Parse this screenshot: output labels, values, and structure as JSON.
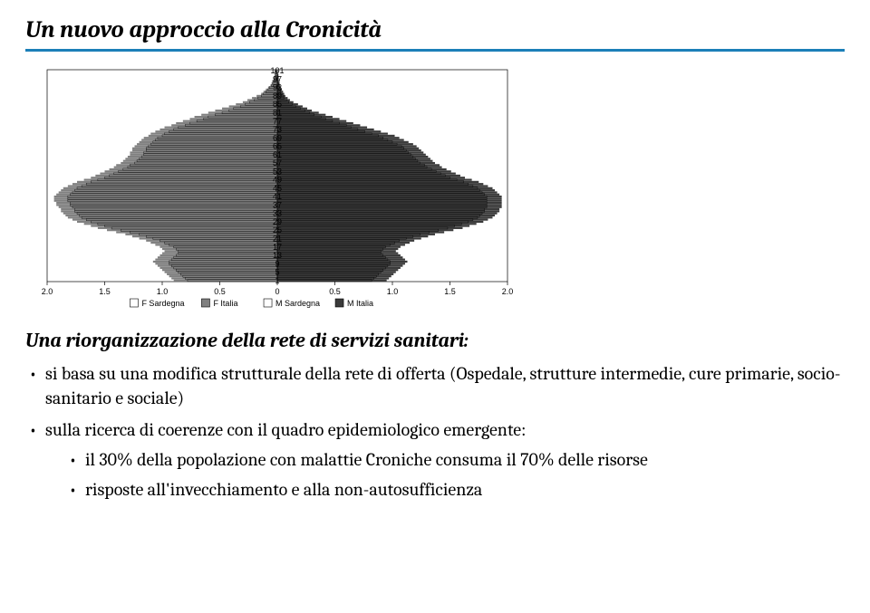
{
  "title": "Un nuovo approccio alla Cronicità",
  "subtitle": "Una riorganizzazione della rete di servizi sanitari:",
  "bullets": {
    "b1": "si basa su una modifica strutturale della rete di offerta (Ospedale, strutture intermedie, cure primarie, socio-sanitario e sociale)",
    "b2": "sulla ricerca di coerenze con il quadro epidemiologico emergente:",
    "sub1": "il 30% della popolazione con malattie Croniche consuma il 70% delle risorse",
    "sub2": "risposte all'invecchiamento e alla non-autosufficienza"
  },
  "chart": {
    "type": "population-pyramid",
    "x_axis": {
      "min": -2.0,
      "max": 2.0,
      "ticks": [
        "2.0",
        "1.5",
        "1.0",
        "0.5",
        "0",
        "0.5",
        "1.0",
        "1.5",
        "2.0"
      ]
    },
    "y_axis": {
      "age_min": 1,
      "age_max": 101,
      "tick_step": 4,
      "top_labels": [
        "101",
        "97"
      ]
    },
    "legend": [
      {
        "label": "F Sardegna",
        "fill": "#ffffff",
        "stroke": "#000000"
      },
      {
        "label": "F Italia",
        "fill": "#808080",
        "stroke": "#808080"
      },
      {
        "label": "M Sardegna",
        "fill": "#ffffff",
        "stroke": "#000000"
      },
      {
        "label": "M Italia",
        "fill": "#3a3a3a",
        "stroke": "#3a3a3a"
      }
    ],
    "colors": {
      "female_italia": "#808080",
      "female_sardegna_fill": "#ffffff",
      "female_sardegna_stroke": "#000000",
      "male_italia": "#3a3a3a",
      "male_sardegna_fill": "#ffffff",
      "male_sardegna_stroke": "#000000",
      "frame": "#000000",
      "background": "#ffffff"
    },
    "bar_height": 2.2,
    "series": {
      "female_italia": [
        0.9,
        0.92,
        0.94,
        0.96,
        0.98,
        1.0,
        1.02,
        1.04,
        1.06,
        1.08,
        1.06,
        1.04,
        1.02,
        1.0,
        0.98,
        1.0,
        1.02,
        1.06,
        1.1,
        1.14,
        1.2,
        1.26,
        1.32,
        1.4,
        1.48,
        1.56,
        1.62,
        1.68,
        1.74,
        1.78,
        1.82,
        1.84,
        1.86,
        1.88,
        1.88,
        1.9,
        1.92,
        1.92,
        1.94,
        1.94,
        1.94,
        1.92,
        1.9,
        1.88,
        1.86,
        1.82,
        1.78,
        1.74,
        1.68,
        1.62,
        1.58,
        1.54,
        1.5,
        1.46,
        1.42,
        1.4,
        1.36,
        1.34,
        1.32,
        1.3,
        1.28,
        1.28,
        1.26,
        1.26,
        1.24,
        1.22,
        1.2,
        1.18,
        1.16,
        1.12,
        1.1,
        1.06,
        1.02,
        0.98,
        0.92,
        0.88,
        0.82,
        0.76,
        0.72,
        0.66,
        0.6,
        0.54,
        0.48,
        0.42,
        0.36,
        0.3,
        0.26,
        0.22,
        0.18,
        0.14,
        0.12,
        0.1,
        0.08,
        0.06,
        0.05,
        0.04,
        0.03,
        0.03,
        0.02,
        0.02,
        0.02
      ],
      "male_italia": [
        0.95,
        0.97,
        0.99,
        1.01,
        1.03,
        1.05,
        1.07,
        1.09,
        1.11,
        1.13,
        1.11,
        1.09,
        1.07,
        1.05,
        1.03,
        1.05,
        1.07,
        1.11,
        1.15,
        1.19,
        1.25,
        1.31,
        1.37,
        1.45,
        1.53,
        1.61,
        1.67,
        1.73,
        1.79,
        1.83,
        1.87,
        1.89,
        1.91,
        1.93,
        1.93,
        1.95,
        1.95,
        1.95,
        1.95,
        1.95,
        1.95,
        1.93,
        1.91,
        1.89,
        1.87,
        1.83,
        1.79,
        1.75,
        1.69,
        1.63,
        1.59,
        1.55,
        1.51,
        1.47,
        1.43,
        1.41,
        1.37,
        1.35,
        1.33,
        1.31,
        1.29,
        1.27,
        1.25,
        1.23,
        1.21,
        1.18,
        1.14,
        1.1,
        1.06,
        1.02,
        0.96,
        0.9,
        0.84,
        0.78,
        0.72,
        0.66,
        0.6,
        0.54,
        0.48,
        0.42,
        0.36,
        0.3,
        0.26,
        0.22,
        0.18,
        0.14,
        0.11,
        0.09,
        0.07,
        0.06,
        0.05,
        0.04,
        0.03,
        0.02,
        0.02,
        0.01,
        0.01,
        0.01,
        0.01,
        0.0,
        0.0
      ],
      "female_sardegna": [
        0.78,
        0.8,
        0.82,
        0.84,
        0.86,
        0.88,
        0.9,
        0.92,
        0.94,
        0.94,
        0.92,
        0.9,
        0.88,
        0.86,
        0.86,
        0.88,
        0.9,
        0.94,
        0.98,
        1.02,
        1.08,
        1.14,
        1.2,
        1.28,
        1.36,
        1.44,
        1.5,
        1.56,
        1.62,
        1.66,
        1.7,
        1.72,
        1.74,
        1.76,
        1.76,
        1.78,
        1.8,
        1.8,
        1.82,
        1.82,
        1.82,
        1.8,
        1.78,
        1.76,
        1.74,
        1.7,
        1.66,
        1.62,
        1.56,
        1.5,
        1.46,
        1.42,
        1.38,
        1.34,
        1.3,
        1.28,
        1.24,
        1.22,
        1.2,
        1.18,
        1.16,
        1.16,
        1.14,
        1.14,
        1.12,
        1.1,
        1.08,
        1.06,
        1.04,
        1.0,
        0.98,
        0.94,
        0.9,
        0.86,
        0.8,
        0.76,
        0.7,
        0.64,
        0.6,
        0.54,
        0.48,
        0.42,
        0.38,
        0.32,
        0.28,
        0.24,
        0.2,
        0.17,
        0.14,
        0.12,
        0.1,
        0.08,
        0.07,
        0.05,
        0.04,
        0.04,
        0.03,
        0.02,
        0.02,
        0.02,
        0.02
      ],
      "male_sardegna": [
        0.82,
        0.84,
        0.86,
        0.88,
        0.9,
        0.92,
        0.94,
        0.96,
        0.98,
        0.98,
        0.96,
        0.94,
        0.92,
        0.9,
        0.9,
        0.92,
        0.94,
        0.98,
        1.02,
        1.06,
        1.12,
        1.18,
        1.24,
        1.32,
        1.4,
        1.48,
        1.54,
        1.6,
        1.66,
        1.7,
        1.74,
        1.76,
        1.78,
        1.8,
        1.8,
        1.82,
        1.82,
        1.82,
        1.82,
        1.82,
        1.82,
        1.8,
        1.78,
        1.76,
        1.74,
        1.7,
        1.66,
        1.62,
        1.56,
        1.5,
        1.46,
        1.42,
        1.38,
        1.34,
        1.3,
        1.28,
        1.24,
        1.22,
        1.2,
        1.18,
        1.16,
        1.14,
        1.12,
        1.1,
        1.08,
        1.04,
        1.0,
        0.96,
        0.92,
        0.88,
        0.82,
        0.76,
        0.7,
        0.64,
        0.6,
        0.54,
        0.48,
        0.42,
        0.38,
        0.32,
        0.28,
        0.24,
        0.2,
        0.16,
        0.13,
        0.1,
        0.08,
        0.06,
        0.05,
        0.04,
        0.03,
        0.03,
        0.02,
        0.02,
        0.01,
        0.01,
        0.01,
        0.01,
        0.0,
        0.0,
        0.0
      ]
    }
  }
}
